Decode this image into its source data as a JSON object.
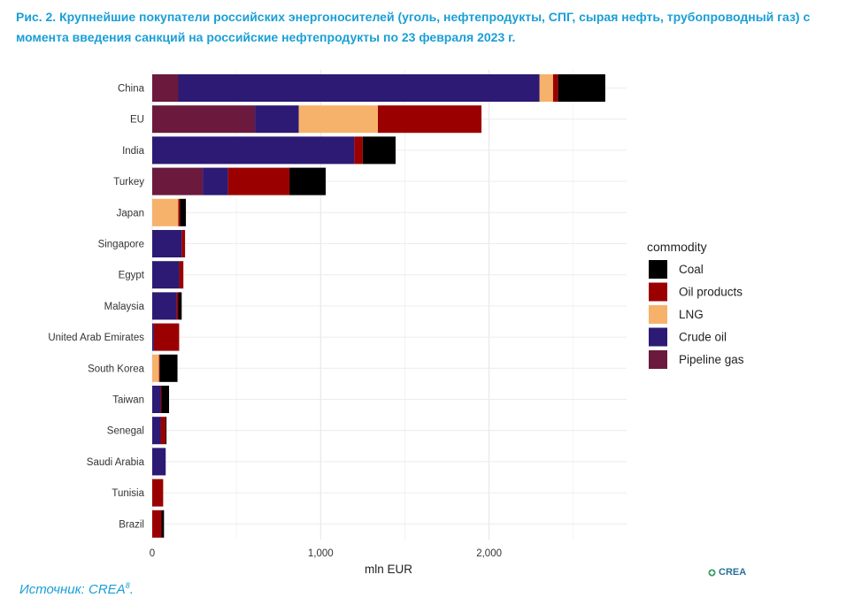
{
  "figure": {
    "title": "Рис. 2. Крупнейшие покупатели российских энергоносителей (уголь, нефтепродукты, СПГ, сырая нефть, трубопроводный газ) с момента введения санкций на российские нефтепродукты по 23 февраля 2023 г.",
    "source_label": "Источник: CREA",
    "source_sup": "8",
    "logo_text": "CREA"
  },
  "chart_data": {
    "type": "bar",
    "orientation": "horizontal",
    "stacked": true,
    "categories": [
      "China",
      "EU",
      "India",
      "Turkey",
      "Japan",
      "Singapore",
      "Egypt",
      "Malaysia",
      "United Arab Emirates",
      "South Korea",
      "Taiwan",
      "Senegal",
      "Saudi Arabia",
      "Tunisia",
      "Brazil"
    ],
    "series": [
      {
        "name": "Pipeline gas",
        "color": "#6b1a3e",
        "values": [
          155,
          610,
          0,
          300,
          0,
          0,
          0,
          0,
          0,
          0,
          0,
          0,
          0,
          0,
          0
        ]
      },
      {
        "name": "Crude oil",
        "color": "#2c1a74",
        "values": [
          2145,
          260,
          1200,
          150,
          0,
          175,
          160,
          145,
          10,
          0,
          50,
          50,
          80,
          0,
          0
        ]
      },
      {
        "name": "LNG",
        "color": "#f6b26b",
        "values": [
          80,
          470,
          0,
          0,
          155,
          0,
          0,
          0,
          0,
          40,
          0,
          0,
          0,
          0,
          0
        ]
      },
      {
        "name": "Oil products",
        "color": "#9b0000",
        "values": [
          30,
          615,
          50,
          365,
          10,
          20,
          25,
          10,
          150,
          5,
          5,
          30,
          0,
          65,
          55
        ]
      },
      {
        "name": "Coal",
        "color": "#000000",
        "values": [
          280,
          0,
          195,
          215,
          35,
          0,
          0,
          20,
          0,
          105,
          45,
          5,
          0,
          0,
          15
        ]
      }
    ],
    "xlabel": "mln EUR",
    "xlim": [
      0,
      2800
    ],
    "xticks": [
      0,
      1000,
      2000
    ],
    "xtick_labels": [
      "0",
      "1,000",
      "2,000"
    ],
    "grid": true,
    "legend": {
      "title": "commodity",
      "position": "right",
      "items": [
        "Coal",
        "Oil products",
        "LNG",
        "Crude oil",
        "Pipeline gas"
      ]
    }
  }
}
